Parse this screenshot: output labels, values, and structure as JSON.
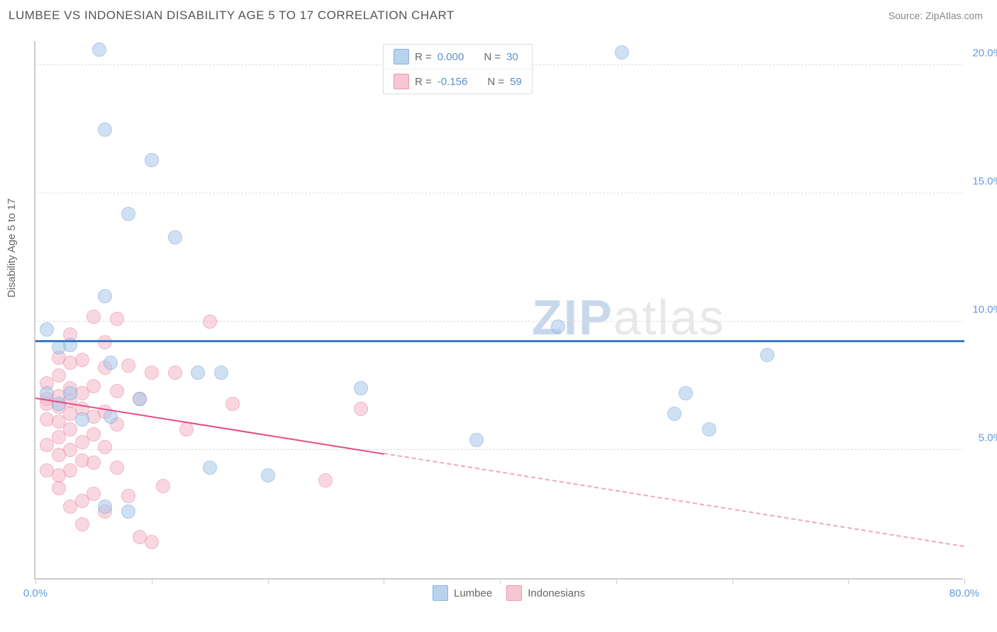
{
  "header": {
    "title": "LUMBEE VS INDONESIAN DISABILITY AGE 5 TO 17 CORRELATION CHART",
    "source": "Source: ZipAtlas.com"
  },
  "watermark": {
    "zip": "ZIP",
    "atlas": "atlas"
  },
  "chart": {
    "type": "scatter",
    "ylabel": "Disability Age 5 to 17",
    "xlim": [
      0,
      80
    ],
    "ylim": [
      0,
      21
    ],
    "x_ticks": [
      0,
      10,
      20,
      30,
      40,
      50,
      60,
      70,
      80
    ],
    "x_tick_labels": {
      "0": "0.0%",
      "80": "80.0%"
    },
    "y_gridlines": [
      5,
      10,
      15,
      20
    ],
    "y_tick_labels": {
      "5": "5.0%",
      "10": "10.0%",
      "15": "15.0%",
      "20": "20.0%"
    },
    "grid_color": "#dddddd",
    "axis_color": "#cccccc",
    "series": {
      "lumbee": {
        "label": "Lumbee",
        "fill": "#a8c8ea",
        "stroke": "#6b9fd8",
        "fill_opacity": 0.55,
        "marker_radius": 10,
        "R_label": "R = ",
        "R_value": "0.000",
        "N_label": "N = ",
        "N_value": "30",
        "trend": {
          "y_at_x0": 9.2,
          "y_at_x80": 9.2,
          "solid_until_x": 80,
          "color": "#3b78c4",
          "width": 3
        },
        "points": [
          [
            5.5,
            20.6
          ],
          [
            50.5,
            20.5
          ],
          [
            6,
            17.5
          ],
          [
            10,
            16.3
          ],
          [
            8,
            14.2
          ],
          [
            12,
            13.3
          ],
          [
            6,
            11.0
          ],
          [
            1,
            9.7
          ],
          [
            3,
            9.1
          ],
          [
            2,
            9.0
          ],
          [
            45,
            9.8
          ],
          [
            63,
            8.7
          ],
          [
            16,
            8.0
          ],
          [
            14,
            8.0
          ],
          [
            6.5,
            8.4
          ],
          [
            56,
            7.2
          ],
          [
            28,
            7.4
          ],
          [
            3,
            7.2
          ],
          [
            9,
            7.0
          ],
          [
            55,
            6.4
          ],
          [
            58,
            5.8
          ],
          [
            38,
            5.4
          ],
          [
            2,
            6.8
          ],
          [
            1,
            7.2
          ],
          [
            15,
            4.3
          ],
          [
            20,
            4.0
          ],
          [
            6,
            2.8
          ],
          [
            8,
            2.6
          ],
          [
            4,
            6.2
          ],
          [
            6.5,
            6.3
          ]
        ]
      },
      "indonesians": {
        "label": "Indonesians",
        "fill": "#f5b8c8",
        "stroke": "#e67d9c",
        "fill_opacity": 0.55,
        "marker_radius": 10,
        "R_label": "R = ",
        "R_value": "-0.156",
        "N_label": "N = ",
        "N_value": "59",
        "trend": {
          "y_at_x0": 7.0,
          "y_at_x80": 1.2,
          "solid_until_x": 30,
          "color": "#e74b87",
          "width": 2.5
        },
        "points": [
          [
            5,
            10.2
          ],
          [
            7,
            10.1
          ],
          [
            15,
            10.0
          ],
          [
            3,
            9.5
          ],
          [
            6,
            9.2
          ],
          [
            2,
            8.6
          ],
          [
            4,
            8.5
          ],
          [
            8,
            8.3
          ],
          [
            3,
            8.4
          ],
          [
            6,
            8.2
          ],
          [
            10,
            8.0
          ],
          [
            12,
            8.0
          ],
          [
            2,
            7.9
          ],
          [
            1,
            7.6
          ],
          [
            5,
            7.5
          ],
          [
            3,
            7.4
          ],
          [
            7,
            7.3
          ],
          [
            4,
            7.2
          ],
          [
            2,
            7.1
          ],
          [
            1,
            7.0
          ],
          [
            3,
            6.9
          ],
          [
            9,
            7.0
          ],
          [
            1,
            6.8
          ],
          [
            2,
            6.7
          ],
          [
            4,
            6.6
          ],
          [
            6,
            6.5
          ],
          [
            3,
            6.4
          ],
          [
            5,
            6.3
          ],
          [
            1,
            6.2
          ],
          [
            2,
            6.1
          ],
          [
            7,
            6.0
          ],
          [
            28,
            6.6
          ],
          [
            17,
            6.8
          ],
          [
            3,
            5.8
          ],
          [
            5,
            5.6
          ],
          [
            2,
            5.5
          ],
          [
            4,
            5.3
          ],
          [
            1,
            5.2
          ],
          [
            6,
            5.1
          ],
          [
            3,
            5.0
          ],
          [
            2,
            4.8
          ],
          [
            4,
            4.6
          ],
          [
            5,
            4.5
          ],
          [
            7,
            4.3
          ],
          [
            3,
            4.2
          ],
          [
            2,
            4.0
          ],
          [
            25,
            3.8
          ],
          [
            11,
            3.6
          ],
          [
            5,
            3.3
          ],
          [
            8,
            3.2
          ],
          [
            4,
            3.0
          ],
          [
            3,
            2.8
          ],
          [
            6,
            2.6
          ],
          [
            9,
            1.6
          ],
          [
            10,
            1.4
          ],
          [
            4,
            2.1
          ],
          [
            2,
            3.5
          ],
          [
            1,
            4.2
          ],
          [
            13,
            5.8
          ]
        ]
      }
    }
  }
}
